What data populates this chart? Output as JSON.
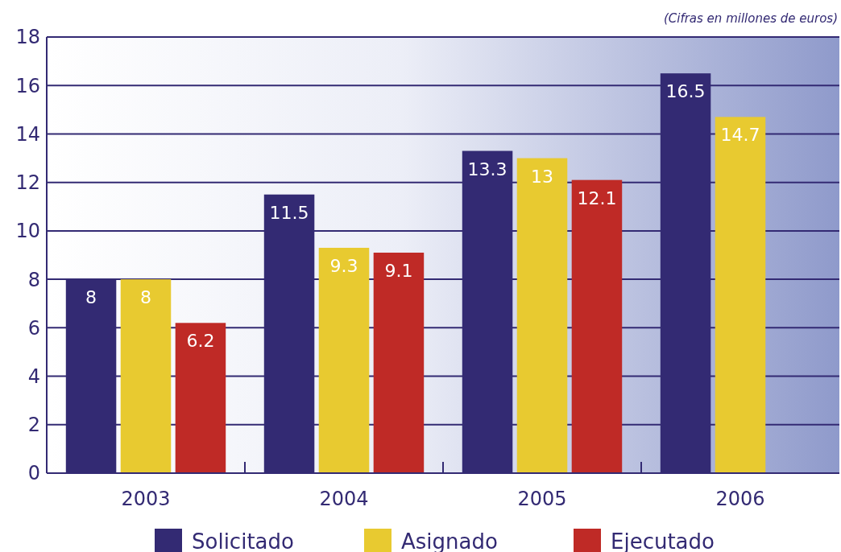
{
  "chart_data": {
    "type": "bar",
    "categories": [
      "2003",
      "2004",
      "2005",
      "2006"
    ],
    "series": [
      {
        "name": "Solicitado",
        "color": "#332a73",
        "values": [
          8,
          11.5,
          13.3,
          16.5
        ]
      },
      {
        "name": "Asignado",
        "color": "#e8ca30",
        "values": [
          8,
          9.3,
          13,
          14.7
        ]
      },
      {
        "name": "Ejecutado",
        "color": "#bf2a26",
        "values": [
          6.2,
          9.1,
          12.1,
          null
        ]
      }
    ],
    "ylim": [
      0,
      18
    ],
    "yticks": [
      0,
      2,
      4,
      6,
      8,
      10,
      12,
      14,
      16,
      18
    ],
    "grid": "y",
    "legend": "bottom",
    "data_labels": true,
    "annotations": [
      "(Cifras en millones de euros)"
    ]
  }
}
